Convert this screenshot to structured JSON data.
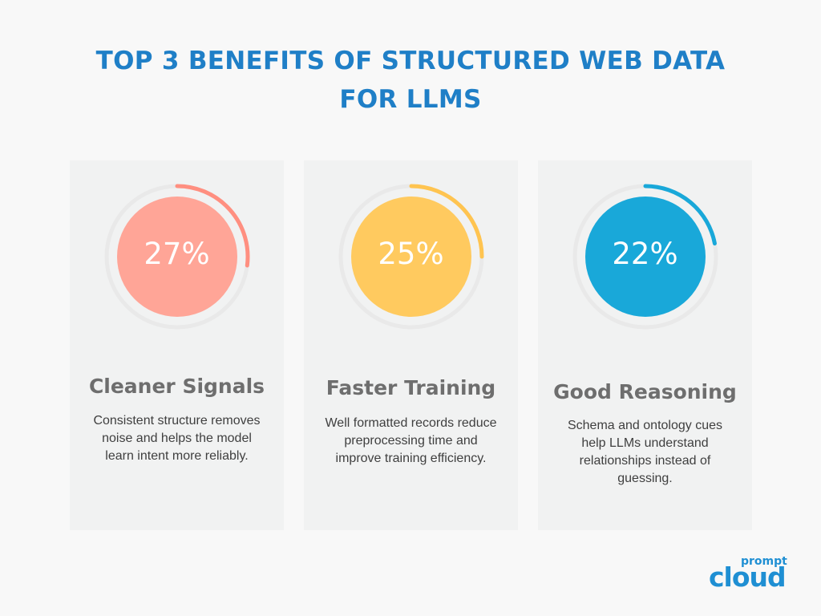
{
  "title": {
    "line1": "TOP 3 BENEFITS OF STRUCTURED WEB DATA",
    "line2": "FOR LLMS"
  },
  "cards": [
    {
      "percent_label": "27%",
      "percent_value": 27,
      "fill_color": "#ffa597",
      "arc_color": "#ff8f80",
      "heading": "Cleaner Signals",
      "description": "Consistent structure removes noise and helps the model learn intent more reliably."
    },
    {
      "percent_label": "25%",
      "percent_value": 25,
      "fill_color": "#ffca5f",
      "arc_color": "#ffc450",
      "heading": "Faster Training",
      "description": "Well formatted records reduce preprocessing time and improve training efficiency."
    },
    {
      "percent_label": "22%",
      "percent_value": 22,
      "fill_color": "#19a8d9",
      "arc_color": "#19a8d9",
      "heading": "Good Reasoning",
      "description": "Schema and ontology cues help LLMs understand relationships instead of guessing."
    }
  ],
  "logo": {
    "small": "prompt",
    "big": "cloud"
  },
  "colors": {
    "title": "#1f7fc7",
    "track": "#e9e9e9",
    "card_bg": "#f1f2f2"
  }
}
